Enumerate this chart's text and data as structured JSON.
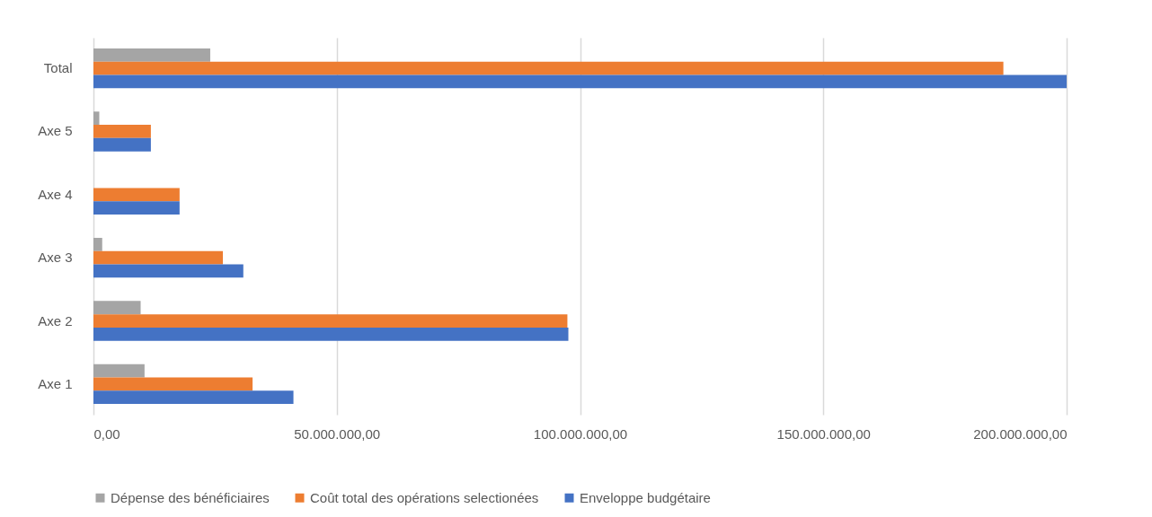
{
  "chart_data": {
    "type": "bar",
    "orientation": "horizontal",
    "categories": [
      "Total",
      "Axe 5",
      "Axe 4",
      "Axe 3",
      "Axe 2",
      "Axe 1"
    ],
    "series": [
      {
        "name": "Dépense des bénéficiaires",
        "color": "#a5a5a5",
        "values": [
          24000000,
          1200000,
          0,
          1800000,
          9700000,
          10500000
        ]
      },
      {
        "name": "Coût total des opérations selectionées",
        "color": "#ed7d31",
        "values": [
          187000000,
          11800000,
          17700000,
          26600000,
          97400000,
          32700000
        ]
      },
      {
        "name": "Enveloppe budgétaire",
        "color": "#4472c4",
        "values": [
          200000000,
          11800000,
          17700000,
          30800000,
          97600000,
          41100000
        ]
      }
    ],
    "xlim": [
      0,
      200000000
    ],
    "xticks": [
      {
        "value": 0,
        "label": "0,00"
      },
      {
        "value": 50000000,
        "label": "50.000.000,00"
      },
      {
        "value": 100000000,
        "label": "100.000.000,00"
      },
      {
        "value": 150000000,
        "label": "150.000.000,00"
      },
      {
        "value": 200000000,
        "label": "200.000.000,00"
      }
    ],
    "grid": "x",
    "legend": "bottom"
  }
}
